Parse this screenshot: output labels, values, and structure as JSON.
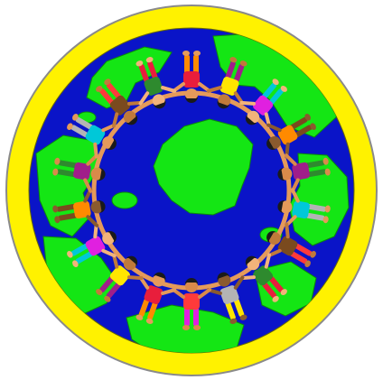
{
  "image": {
    "subject": "circle-of-children-holding-hands-around-globe",
    "figure_count": 18
  },
  "colors": {
    "background": "#ffffff",
    "ring": "#fff200",
    "ring_outline": "#808080",
    "ocean": "#0a14c8",
    "land": "#14e614",
    "land_outline": "#0a8a0a",
    "skin_tones": [
      "#e59a5a",
      "#c07a3a",
      "#f2b37a",
      "#8a5a2e",
      "#d98a4a"
    ],
    "clothing": [
      "#e81e3c",
      "#ffe600",
      "#e020e0",
      "#ff8a00",
      "#a01e8a",
      "#00c8d8",
      "#7a4a1e",
      "#2e8a2e",
      "#b4b4b4",
      "#ff3a3a"
    ],
    "hair": "#1a1a1a"
  }
}
